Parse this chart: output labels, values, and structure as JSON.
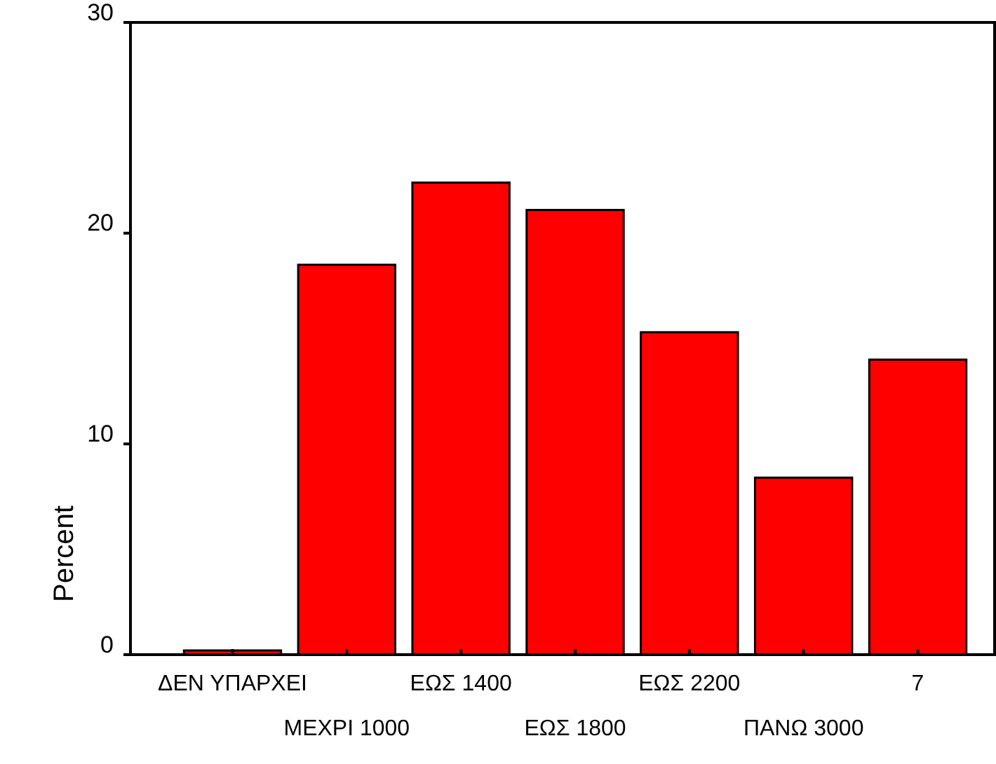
{
  "chart_data": {
    "type": "bar",
    "ylabel": "Percent",
    "categories": [
      "ΔΕΝ ΥΠΑΡΧΕΙ",
      "ΜΕΧΡΙ 1000",
      "ΕΩΣ 1400",
      "ΕΩΣ 1800",
      "ΕΩΣ 2200",
      "ΠΑΝΩ 3000",
      "7"
    ],
    "values": [
      0.2,
      18.5,
      22.4,
      21.1,
      15.3,
      8.4,
      14.0
    ],
    "color": "#ff0000",
    "ylim": [
      0,
      30
    ],
    "yticks": [
      0,
      10,
      20,
      30
    ],
    "grid": false
  }
}
